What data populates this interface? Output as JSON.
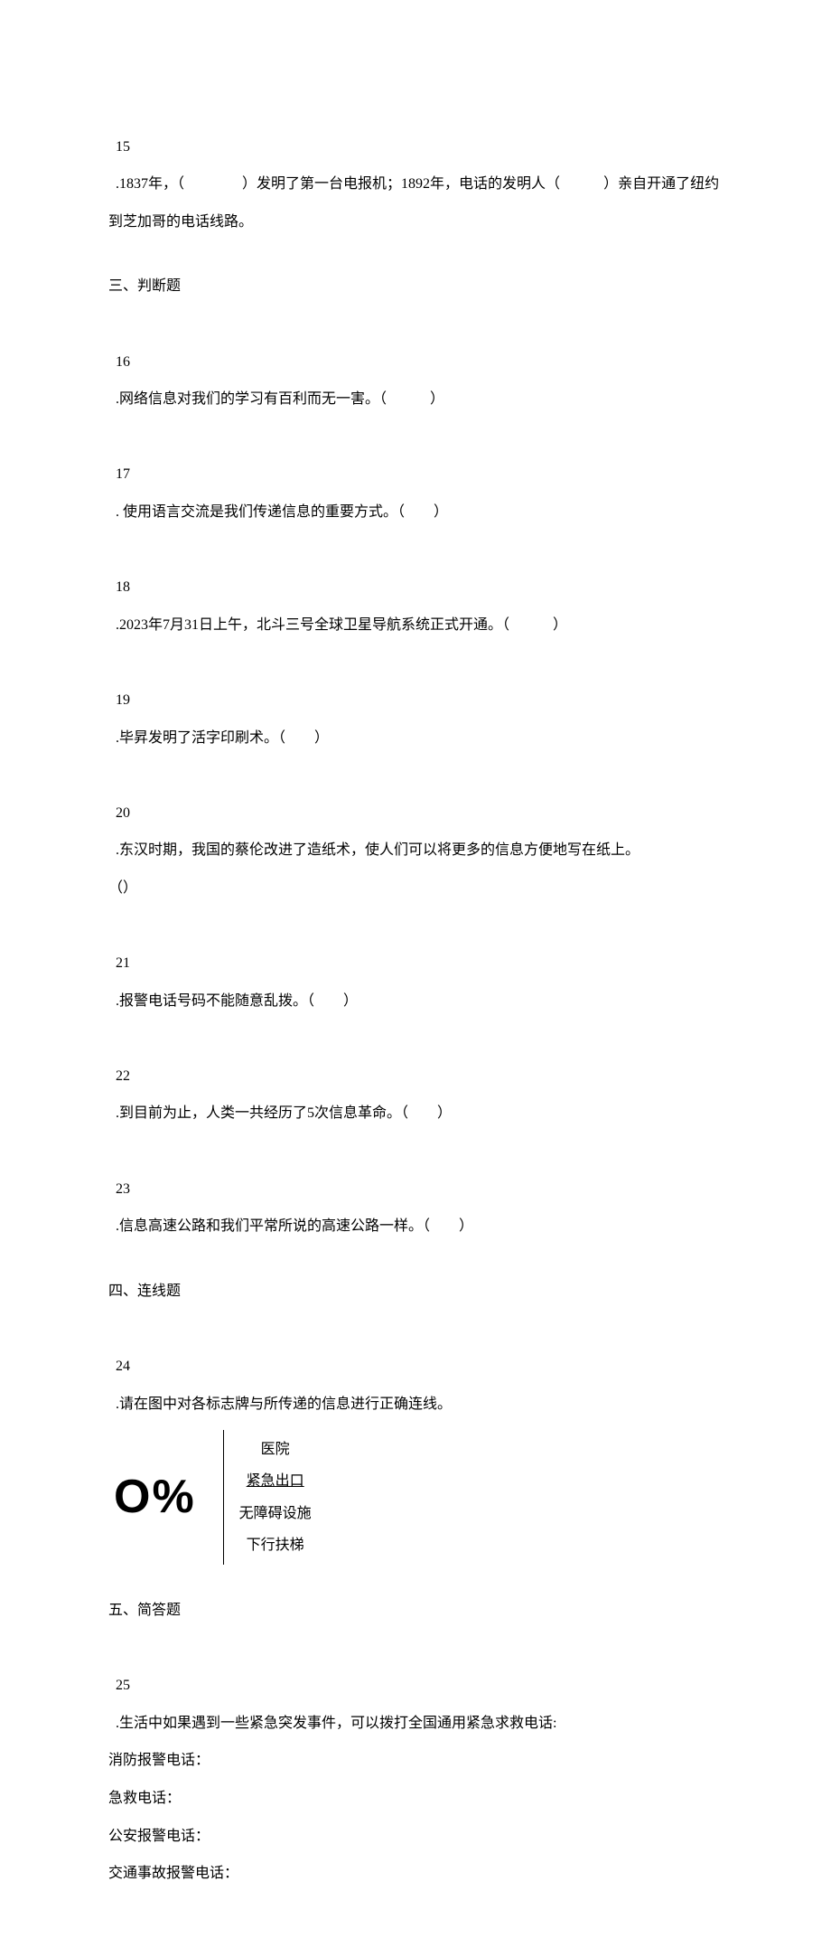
{
  "q15": {
    "num": "15",
    "text_a": ".1837年，（",
    "blank1": "　　　　",
    "text_b": "）发明了第一台电报机；1892年，电话的发明人（",
    "blank2": "　　　",
    "text_c": "）亲自开通了纽约到芝加哥的电话线路。"
  },
  "section3": "三、判断题",
  "q16": {
    "num": "16",
    "text": ".网络信息对我们的学习有百利而无一害。（　　　）"
  },
  "q17": {
    "num": "17",
    "text": ". 使用语言交流是我们传递信息的重要方式。（　　）"
  },
  "q18": {
    "num": "18",
    "text": ".2023年7月31日上午，北斗三号全球卫星导航系统正式开通。（　　　）"
  },
  "q19": {
    "num": "19",
    "text": ".毕昇发明了活字印刷术。（　　）"
  },
  "q20": {
    "num": "20",
    "text_a": ".东汉时期，我国的蔡伦改进了造纸术，使人们可以将更多的信息方便地写在纸上。",
    "text_b": "（）"
  },
  "q21": {
    "num": "21",
    "text": ".报警电话号码不能随意乱拨。（　　）"
  },
  "q22": {
    "num": "22",
    "text": ".到目前为止，人类一共经历了5次信息革命。（　　）"
  },
  "q23": {
    "num": "23",
    "text": ".信息高速公路和我们平常所说的高速公路一样。（　　）"
  },
  "section4": "四、连线题",
  "q24": {
    "num": "24",
    "text": ".请在图中对各标志牌与所传递的信息进行正确连线。",
    "left": "O%",
    "right": [
      "医院",
      "紧急出口",
      "无障碍设施",
      "下行扶梯"
    ]
  },
  "section5": "五、简答题",
  "q25": {
    "num": "25",
    "text": ".生活中如果遇到一些紧急突发事件，可以拨打全国通用紧急求救电话:",
    "lines": [
      "消防报警电话：",
      "急救电话：",
      "公安报警电话：",
      "交通事故报警电话："
    ]
  }
}
